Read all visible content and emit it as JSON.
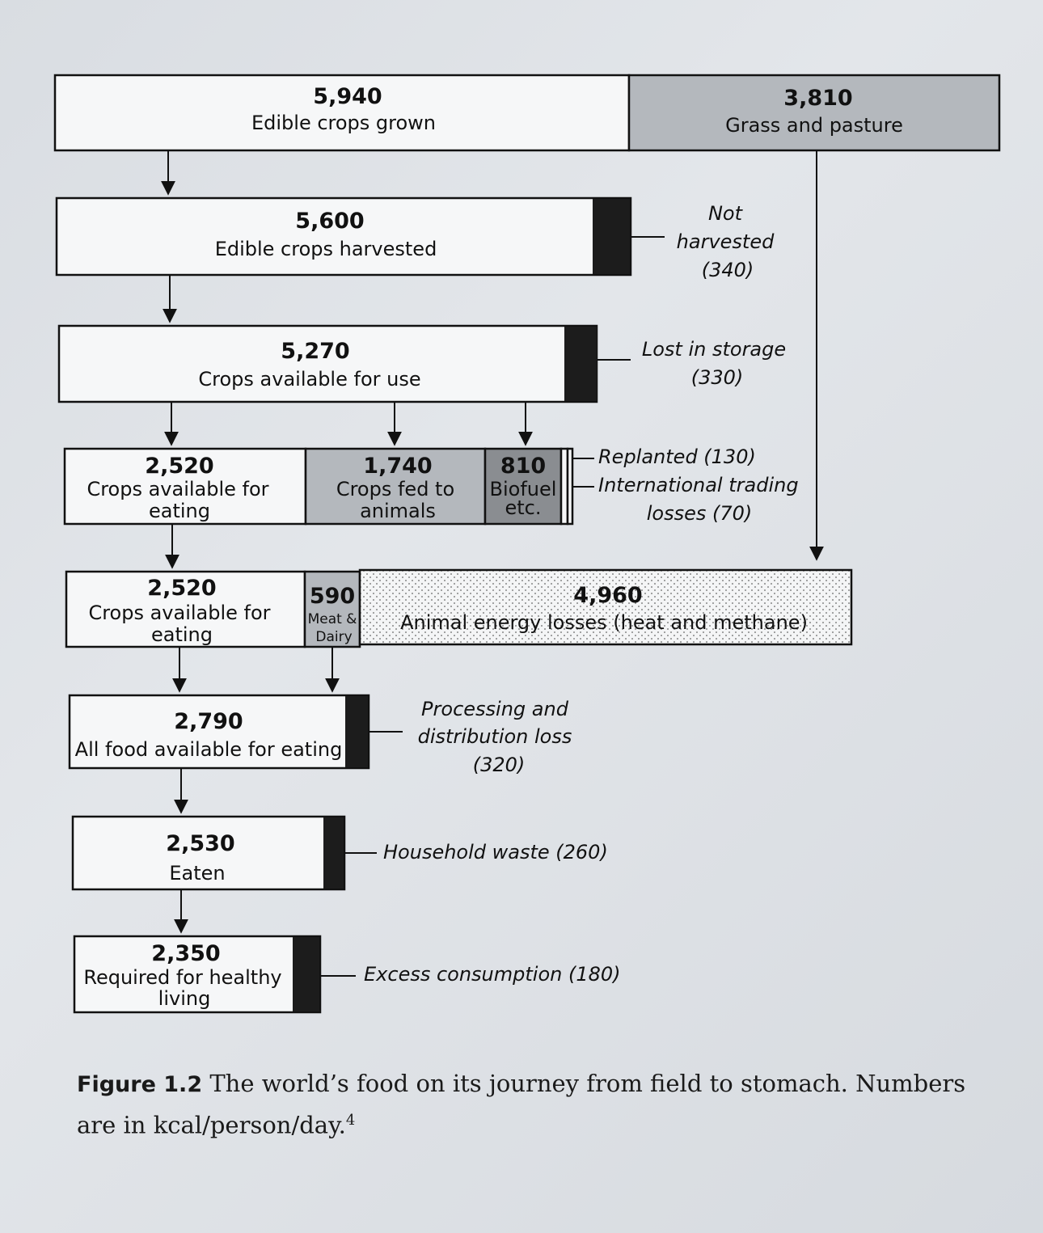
{
  "stages": {
    "grown": {
      "value": "5,940",
      "label": "Edible crops grown"
    },
    "grass": {
      "value": "3,810",
      "label": "Grass and pasture"
    },
    "harvested": {
      "value": "5,600",
      "label": "Edible crops harvested"
    },
    "not_harvested": {
      "label_line1": "Not",
      "label_line2": "harvested",
      "value": "(340)"
    },
    "available_use": {
      "value": "5,270",
      "label": "Crops available for use"
    },
    "lost_storage": {
      "label": "Lost in storage",
      "value": "(330)"
    },
    "eating1": {
      "value": "2,520",
      "label_line1": "Crops available for",
      "label_line2": "eating"
    },
    "fed_animals": {
      "value": "1,740",
      "label_line1": "Crops fed to",
      "label_line2": "animals"
    },
    "biofuel": {
      "value": "810",
      "label_line1": "Biofuel",
      "label_line2": "etc."
    },
    "replanted": {
      "label": "Replanted (130)"
    },
    "trading": {
      "label_line1": "International trading",
      "label_line2": "losses (70)"
    },
    "eating2": {
      "value": "2,520",
      "label_line1": "Crops available for",
      "label_line2": "eating"
    },
    "meat_dairy": {
      "value": "590",
      "label_line1": "Meat &",
      "label_line2": "Dairy"
    },
    "animal_losses": {
      "value": "4,960",
      "label": "Animal energy losses (heat and methane)"
    },
    "all_food": {
      "value": "2,790",
      "label": "All food available for eating"
    },
    "processing": {
      "label_line1": "Processing and",
      "label_line2": "distribution loss",
      "value": "(320)"
    },
    "eaten": {
      "value": "2,530",
      "label": "Eaten"
    },
    "household": {
      "label": "Household waste (260)"
    },
    "required": {
      "value": "2,350",
      "label_line1": "Required for healthy",
      "label_line2": "living"
    },
    "excess": {
      "label": "Excess consumption (180)"
    }
  },
  "caption": {
    "figure": "Figure 1.2",
    "text": "The world’s food on its journey from field to stomach. Numbers are in kcal/person/day.",
    "footnote": "4"
  }
}
